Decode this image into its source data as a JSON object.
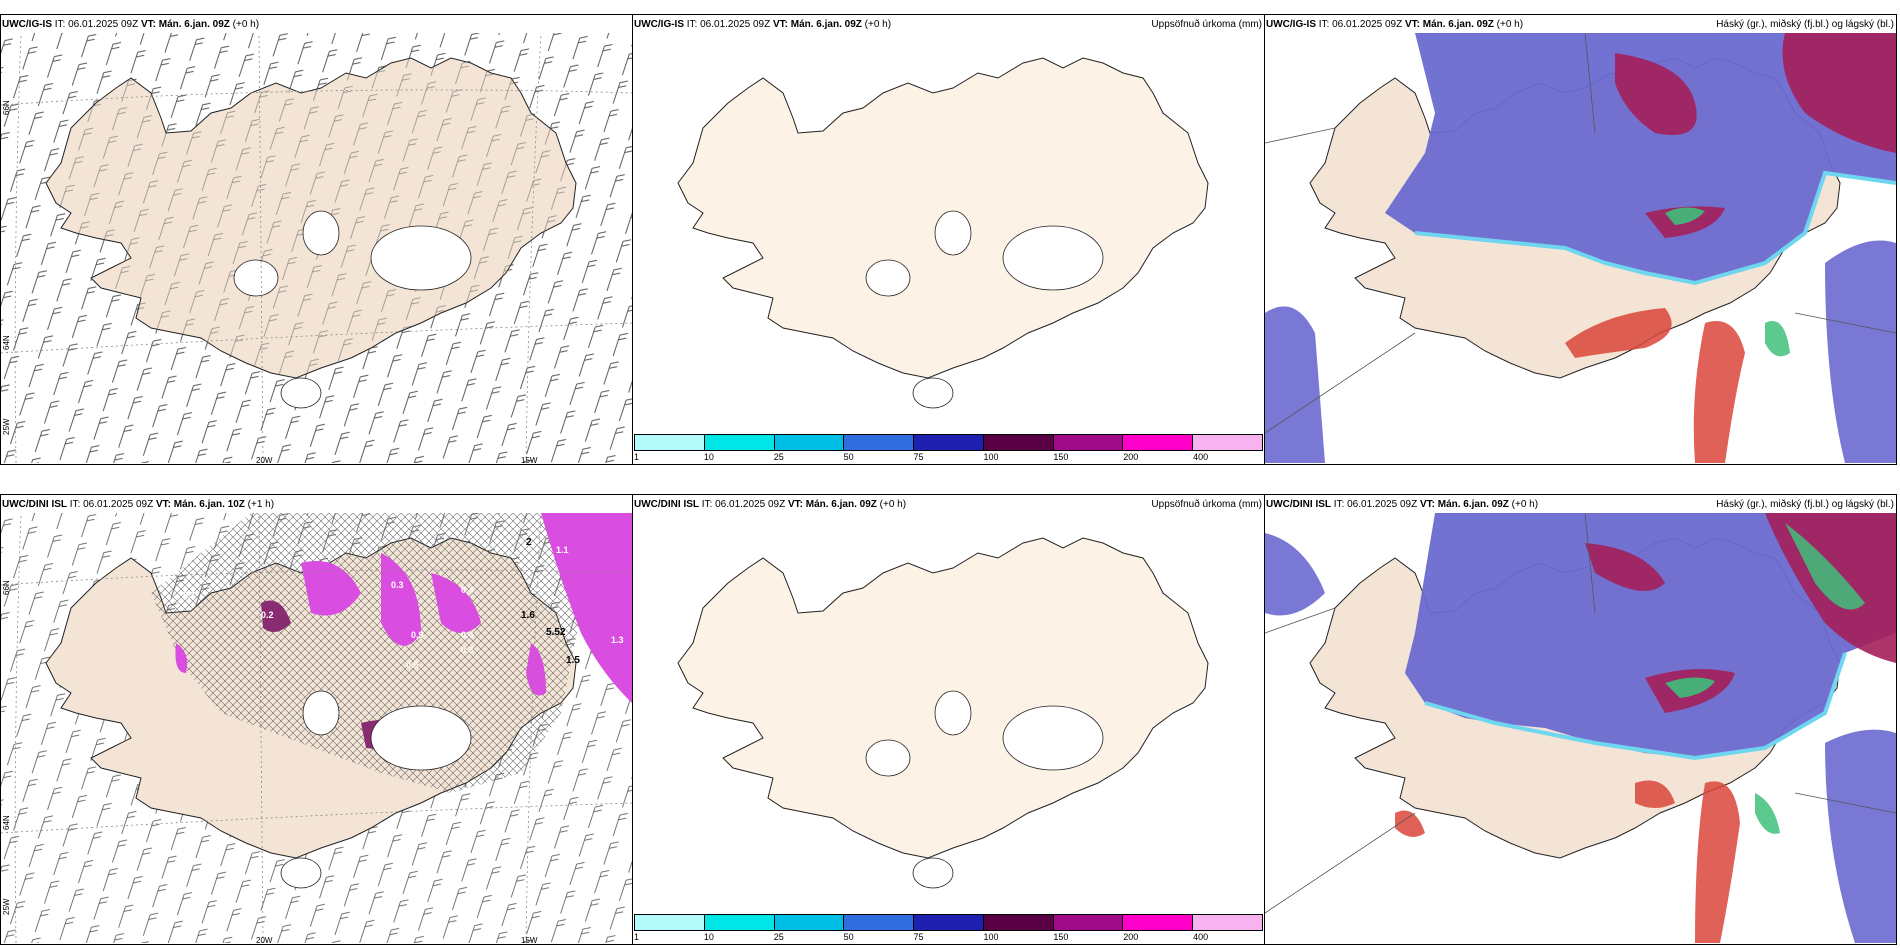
{
  "panels": {
    "p1": {
      "model": "UWC/IG-IS",
      "it_label": "IT:",
      "it": "06.01.2025 09Z",
      "vt_label": "VT:",
      "vt": "Mán. 6.jan. 09Z",
      "lead": "(+0 h)",
      "right": ""
    },
    "p2": {
      "model": "UWC/IG-IS",
      "it_label": "IT:",
      "it": "06.01.2025 09Z",
      "vt_label": "VT:",
      "vt": "Mán. 6.jan. 09Z",
      "lead": "(+0 h)",
      "right": "Uppsöfnuð úrkoma (mm)"
    },
    "p3": {
      "model": "UWC/IG-IS",
      "it_label": "IT:",
      "it": "06.01.2025 09Z",
      "vt_label": "VT:",
      "vt": "Mán. 6.jan. 09Z",
      "lead": "(+0 h)",
      "right": "Háský (gr.), miðský (fj.bl.) og lágský (bl.)"
    },
    "p4": {
      "model": "UWC/DINI ISL",
      "it_label": "IT:",
      "it": "06.01.2025 09Z",
      "vt_label": "VT:",
      "vt": "Mán. 6.jan. 10Z",
      "lead": "(+1 h)",
      "right": ""
    },
    "p5": {
      "model": "UWC/DINI ISL",
      "it_label": "IT:",
      "it": "06.01.2025 09Z",
      "vt_label": "VT:",
      "vt": "Mán. 6.jan. 09Z",
      "lead": "(+0 h)",
      "right": "Uppsöfnuð úrkoma (mm)"
    },
    "p6": {
      "model": "UWC/DINI ISL",
      "it_label": "IT:",
      "it": "06.01.2025 09Z",
      "vt_label": "VT:",
      "vt": "Mán. 6.jan. 09Z",
      "lead": "(+0 h)",
      "right": "Háský (gr.), miðský (fj.bl.) og lágský (bl.)"
    }
  },
  "axes": {
    "lon_25w": "25W",
    "lon_20w": "20W",
    "lon_15w": "15W",
    "lat_66n": "66N",
    "lat_64n": "64N"
  },
  "colorbar": {
    "ticks": [
      "1",
      "10",
      "25",
      "50",
      "75",
      "100",
      "150",
      "200",
      "400"
    ],
    "colors": [
      "#b3fbfb",
      "#00e5e5",
      "#00bfe6",
      "#2f6de0",
      "#2020b0",
      "#5a0045",
      "#a00c88",
      "#ff00c8",
      "#f7b3f0"
    ]
  },
  "precip_labels": [
    "1.1",
    "1.3",
    "1.6",
    "1.5",
    "0.4",
    "0.3",
    "0.9",
    "0.5",
    "0.4",
    "0.3",
    "0.7",
    "0.2",
    "0.1",
    "5.52"
  ],
  "isobar_label": "2",
  "colors": {
    "land": "#f3e4d6",
    "land2": "#fdf2e6",
    "high": "#6a6ad0",
    "mid": "#a41f5a",
    "low": "#6fd6f0",
    "green": "#3fbf7a",
    "precip": "#d94de0"
  }
}
